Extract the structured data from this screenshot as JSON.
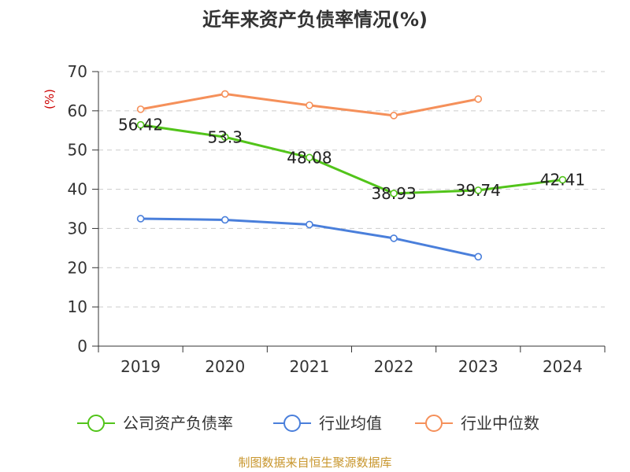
{
  "chart_data": {
    "type": "line",
    "title": "近年来资产负债率情况(%)",
    "ylabel": "(%)",
    "xlabel": "",
    "categories": [
      "2019",
      "2020",
      "2021",
      "2022",
      "2023",
      "2024"
    ],
    "ylim": [
      0,
      70
    ],
    "yticks": [
      0,
      10,
      20,
      30,
      40,
      50,
      60,
      70
    ],
    "grid": true,
    "legend_position": "bottom",
    "series": [
      {
        "name": "公司资产负债率",
        "color": "#52c41a",
        "values": [
          56.42,
          53.3,
          48.08,
          38.93,
          39.74,
          42.41
        ],
        "labels": [
          "56.42",
          "53.3",
          "48.08",
          "38.93",
          "39.74",
          "42.41"
        ]
      },
      {
        "name": "行业均值",
        "color": "#4a7fdb",
        "values": [
          32.5,
          32.2,
          31.0,
          27.5,
          22.8,
          null
        ]
      },
      {
        "name": "行业中位数",
        "color": "#f5905a",
        "values": [
          60.4,
          64.3,
          61.4,
          58.8,
          63.0,
          null
        ]
      }
    ]
  },
  "colors": {
    "unit": "#cc0000",
    "source": "#c8962d",
    "axis": "#333333",
    "grid": "#cccccc"
  },
  "source": "制图数据来自恒生聚源数据库"
}
